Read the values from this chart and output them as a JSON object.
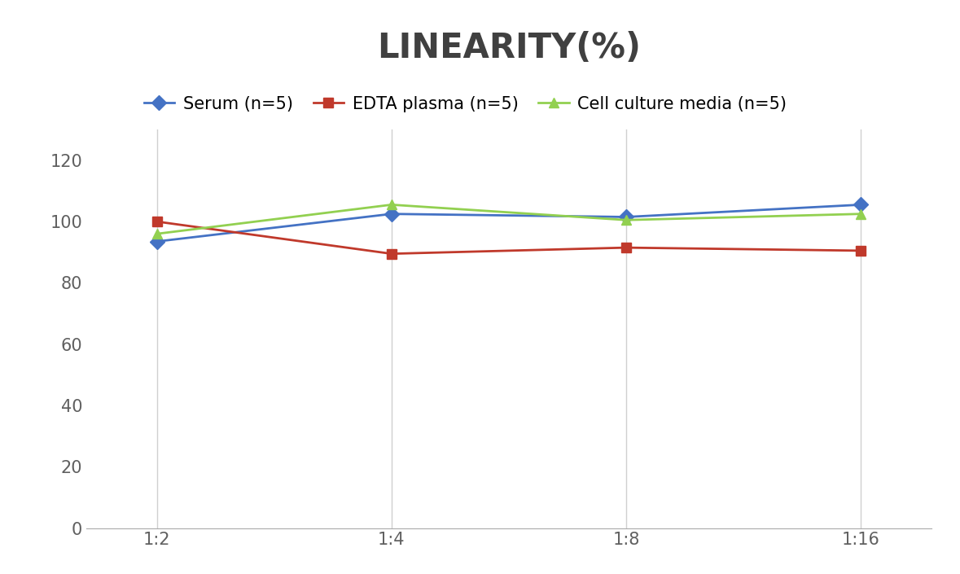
{
  "title": "LINEARITY(%)",
  "x_labels": [
    "1:2",
    "1:4",
    "1:8",
    "1:16"
  ],
  "x_positions": [
    0,
    1,
    2,
    3
  ],
  "series": [
    {
      "name": "Serum (n=5)",
      "values": [
        93.5,
        102.5,
        101.5,
        105.5
      ],
      "color": "#4472C4",
      "marker": "D",
      "linestyle": "-"
    },
    {
      "name": "EDTA plasma (n=5)",
      "values": [
        100.0,
        89.5,
        91.5,
        90.5
      ],
      "color": "#C0392B",
      "marker": "s",
      "linestyle": "-"
    },
    {
      "name": "Cell culture media (n=5)",
      "values": [
        96.0,
        105.5,
        100.5,
        102.5
      ],
      "color": "#92D050",
      "marker": "^",
      "linestyle": "-"
    }
  ],
  "ylim": [
    0,
    130
  ],
  "yticks": [
    0,
    20,
    40,
    60,
    80,
    100,
    120
  ],
  "background_color": "#ffffff",
  "grid_color": "#d0d0d0",
  "title_fontsize": 30,
  "tick_fontsize": 15,
  "legend_fontsize": 15,
  "title_color": "#404040",
  "tick_color": "#606060",
  "spine_color": "#aaaaaa"
}
